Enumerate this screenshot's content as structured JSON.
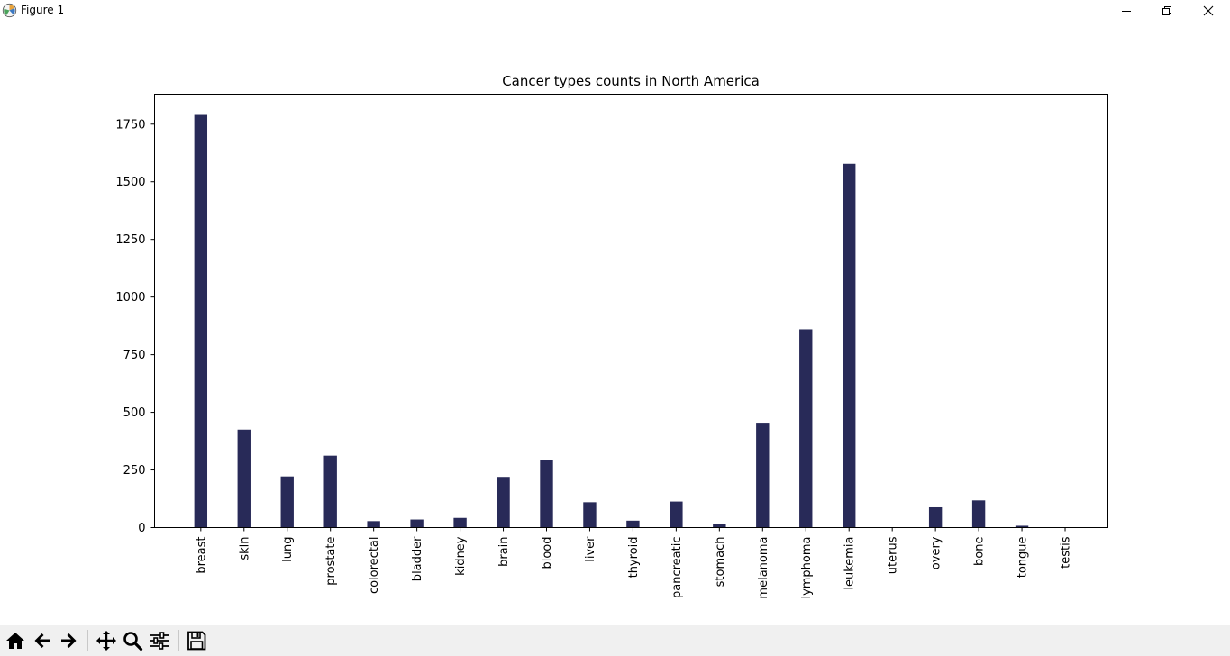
{
  "window": {
    "title": "Figure 1",
    "icon": "matplotlib-logo-icon"
  },
  "toolbar": {
    "buttons": [
      {
        "name": "home-button",
        "icon": "home-icon"
      },
      {
        "name": "back-button",
        "icon": "arrow-left-icon"
      },
      {
        "name": "forward-button",
        "icon": "arrow-right-icon"
      },
      {
        "name": "pan-button",
        "icon": "move-icon"
      },
      {
        "name": "zoom-button",
        "icon": "magnifier-icon"
      },
      {
        "name": "configure-subplots-button",
        "icon": "sliders-icon"
      },
      {
        "name": "save-button",
        "icon": "floppy-disk-icon"
      }
    ]
  },
  "chart_data": {
    "type": "bar",
    "title": "Cancer types counts in North America",
    "xlabel": "",
    "ylabel": "",
    "categories": [
      "breast",
      "skin",
      "lung",
      "prostate",
      "colorectal",
      "bladder",
      "kidney",
      "brain",
      "blood",
      "liver",
      "thyroid",
      "pancreatic",
      "stomach",
      "melanoma",
      "lymphoma",
      "leukemia",
      "uterus",
      "overy",
      "bone",
      "tongue",
      "testis"
    ],
    "values": [
      1790,
      425,
      222,
      312,
      28,
      35,
      42,
      220,
      293,
      110,
      30,
      113,
      15,
      455,
      860,
      1578,
      0,
      88,
      118,
      8,
      0
    ],
    "yticks": [
      0,
      250,
      500,
      750,
      1000,
      1250,
      1500,
      1750
    ],
    "ylim": [
      0,
      1880
    ],
    "bar_color": "#282a58",
    "grid": false,
    "legend": "none"
  }
}
